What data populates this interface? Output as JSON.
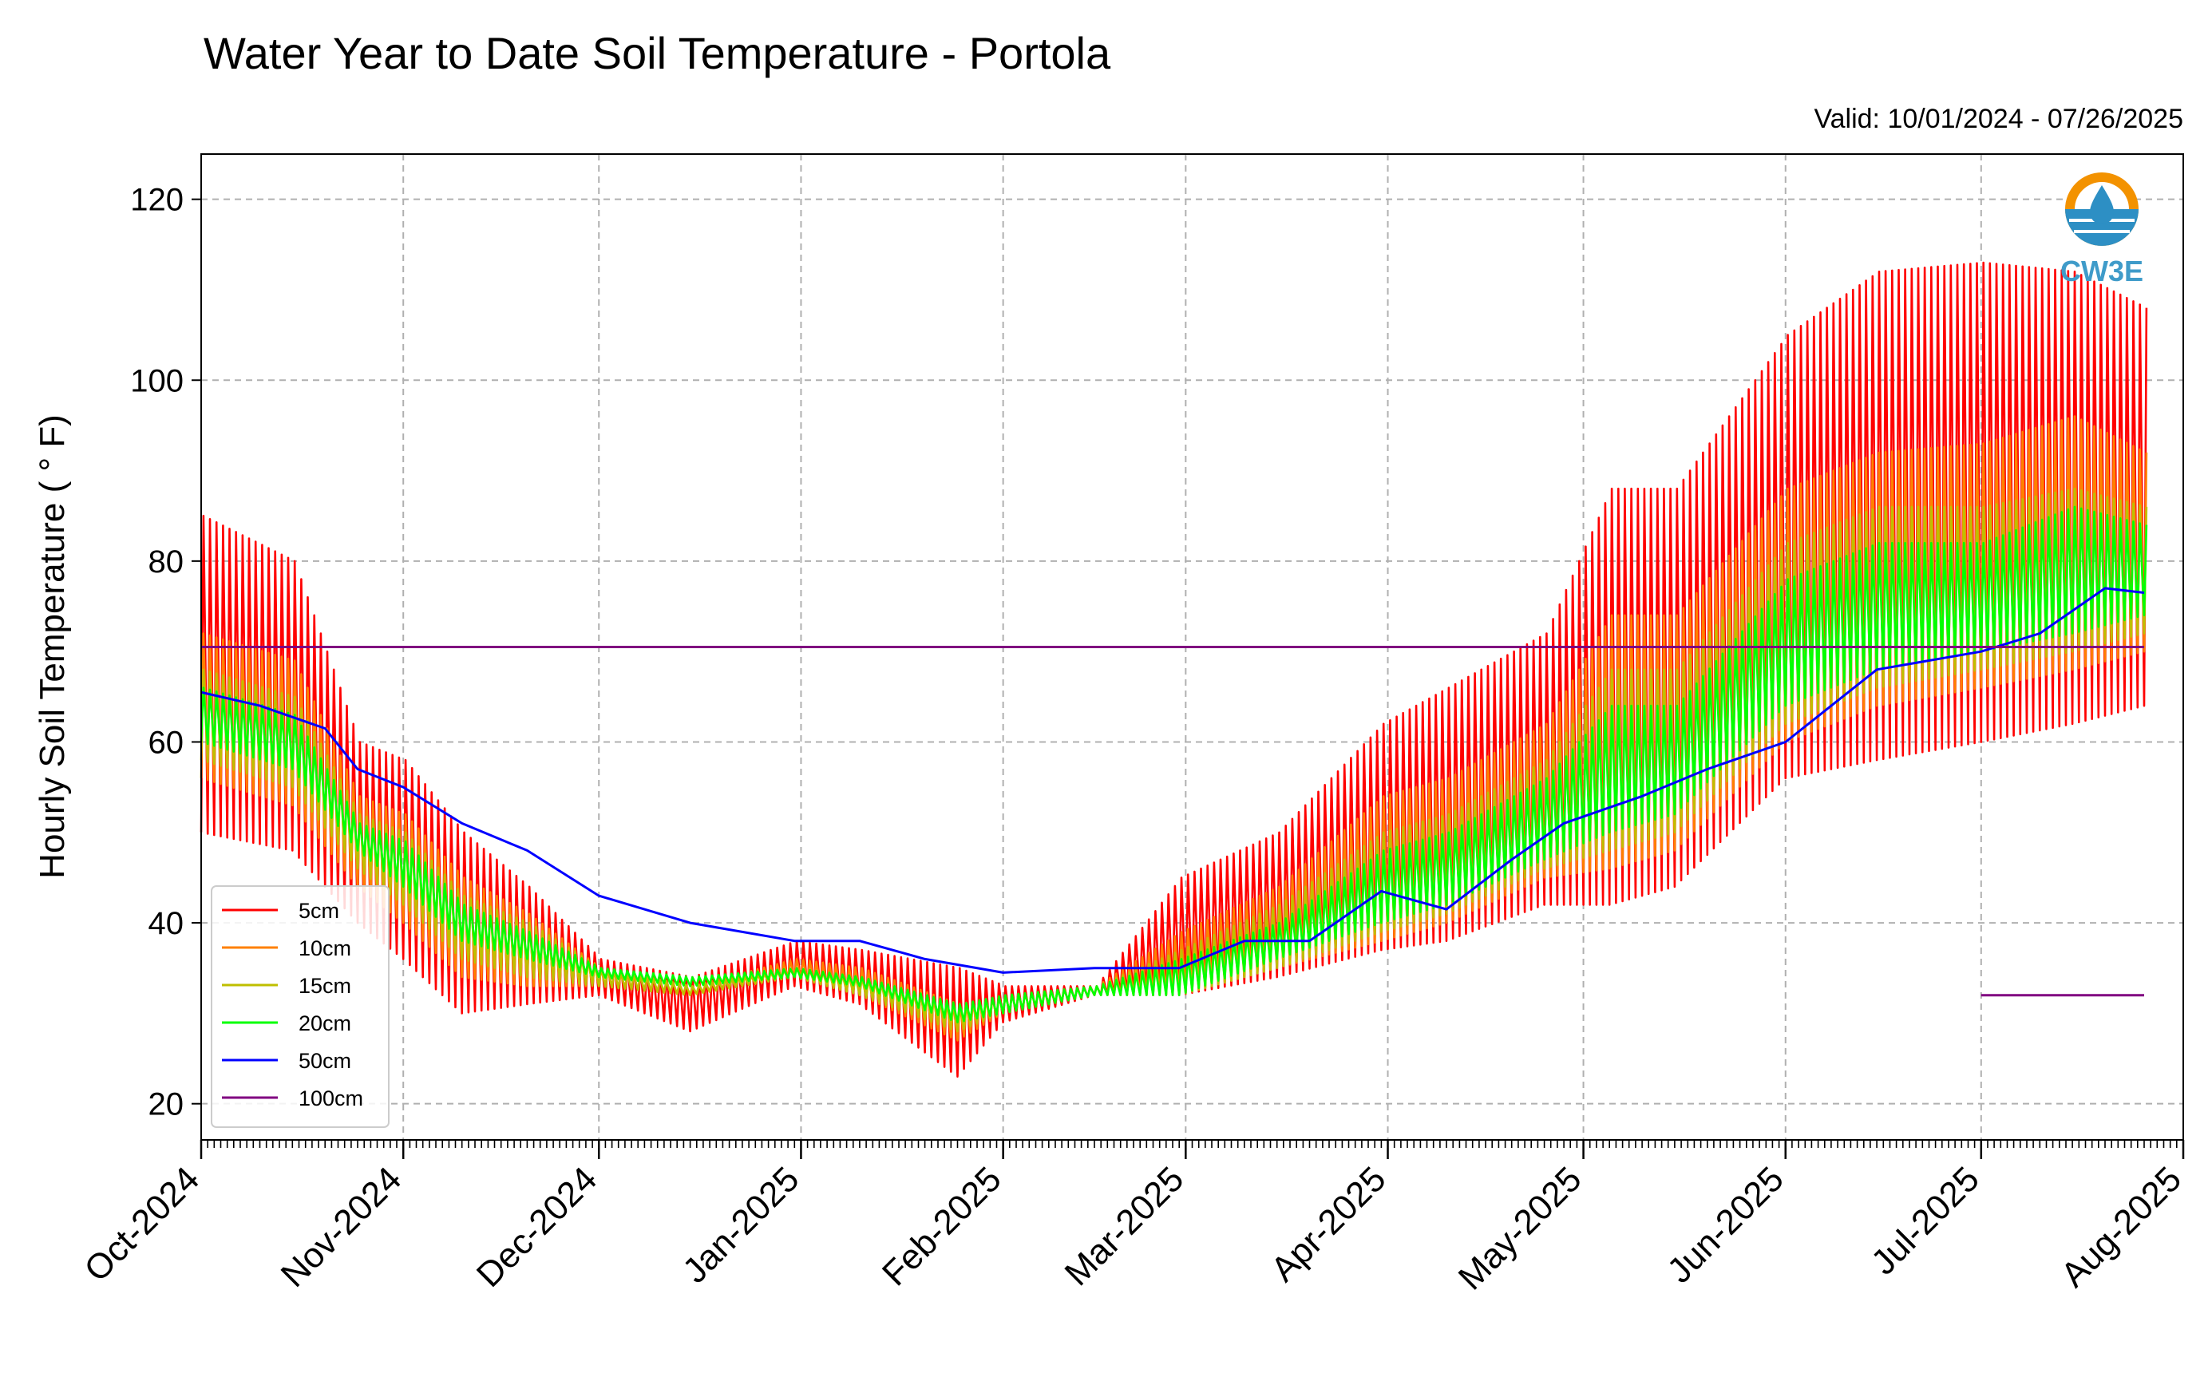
{
  "chart_data": {
    "type": "line",
    "title": "Water Year to Date Soil Temperature - Portola",
    "subtitle": "Valid: 10/01/2024 - 07/26/2025",
    "ylabel": "Hourly Soil Temperature ( ° F)",
    "xlabel": "",
    "xlim": [
      "2024-10-01",
      "2025-08-01"
    ],
    "ylim": [
      16,
      125
    ],
    "yticks": [
      20,
      40,
      60,
      80,
      100,
      120
    ],
    "xtick_labels": [
      "Oct-2024",
      "Nov-2024",
      "Dec-2024",
      "Jan-2025",
      "Feb-2025",
      "Mar-2025",
      "Apr-2025",
      "May-2025",
      "Jun-2025",
      "Jul-2025",
      "Aug-2025"
    ],
    "grid": true,
    "legend": "lower-left",
    "logo": "CW3E",
    "series": [
      {
        "name": "5cm",
        "color": "#ff0000",
        "kind": "diurnal",
        "x": [
          "2024-10-01",
          "2024-10-15",
          "2024-10-25",
          "2024-11-01",
          "2024-11-10",
          "2024-11-20",
          "2024-12-01",
          "2024-12-15",
          "2024-12-31",
          "2025-01-10",
          "2025-01-25",
          "2025-02-01",
          "2025-02-15",
          "2025-02-28",
          "2025-03-15",
          "2025-03-31",
          "2025-04-10",
          "2025-04-25",
          "2025-05-05",
          "2025-05-15",
          "2025-06-01",
          "2025-06-15",
          "2025-07-01",
          "2025-07-15",
          "2025-07-26"
        ],
        "low": [
          50,
          48,
          40,
          36,
          30,
          31,
          32,
          28,
          33,
          31,
          23,
          29,
          32,
          32,
          34,
          37,
          38,
          42,
          42,
          44,
          56,
          58,
          60,
          62,
          64
        ],
        "high": [
          85,
          80,
          60,
          58,
          50,
          44,
          36,
          34,
          38,
          37,
          35,
          33,
          33,
          45,
          50,
          62,
          66,
          72,
          88,
          88,
          105,
          112,
          113,
          112,
          108
        ]
      },
      {
        "name": "10cm",
        "color": "#ff8000",
        "kind": "diurnal",
        "x": [
          "2024-10-01",
          "2024-10-15",
          "2024-10-25",
          "2024-11-01",
          "2024-11-10",
          "2024-11-20",
          "2024-12-01",
          "2024-12-15",
          "2024-12-31",
          "2025-01-10",
          "2025-01-25",
          "2025-02-01",
          "2025-02-15",
          "2025-02-28",
          "2025-03-15",
          "2025-03-31",
          "2025-04-10",
          "2025-04-25",
          "2025-05-05",
          "2025-05-15",
          "2025-06-01",
          "2025-06-15",
          "2025-07-01",
          "2025-07-15",
          "2025-07-26"
        ],
        "low": [
          56,
          53,
          44,
          40,
          34,
          33,
          33,
          32,
          34,
          32,
          27,
          30,
          32,
          32,
          35,
          38,
          40,
          45,
          46,
          48,
          60,
          64,
          66,
          68,
          70
        ],
        "high": [
          72,
          69,
          54,
          52,
          45,
          41,
          35,
          33,
          36,
          35,
          31,
          32,
          33,
          39,
          44,
          54,
          56,
          62,
          74,
          74,
          88,
          92,
          93,
          96,
          92
        ]
      },
      {
        "name": "15cm",
        "color": "#bfbf00",
        "kind": "diurnal",
        "x": [
          "2024-10-01",
          "2024-10-15",
          "2024-10-25",
          "2024-11-01",
          "2024-11-10",
          "2024-11-20",
          "2024-12-01",
          "2024-12-15",
          "2024-12-31",
          "2025-01-10",
          "2025-01-25",
          "2025-02-01",
          "2025-02-15",
          "2025-02-28",
          "2025-03-15",
          "2025-03-31",
          "2025-04-10",
          "2025-04-25",
          "2025-05-05",
          "2025-05-15",
          "2025-06-01",
          "2025-06-15",
          "2025-07-01",
          "2025-07-15",
          "2025-07-26"
        ],
        "low": [
          58,
          55,
          46,
          42,
          36,
          34,
          33,
          32,
          34,
          32,
          28,
          30,
          32,
          32,
          35,
          39,
          41,
          46,
          48,
          50,
          62,
          66,
          68,
          70,
          72
        ],
        "high": [
          68,
          65,
          52,
          50,
          43,
          40,
          35,
          33,
          35,
          34,
          31,
          32,
          33,
          37,
          42,
          50,
          52,
          58,
          68,
          68,
          82,
          86,
          86,
          88,
          86
        ]
      },
      {
        "name": "20cm",
        "color": "#00ff00",
        "kind": "diurnal",
        "x": [
          "2024-10-01",
          "2024-10-15",
          "2024-10-25",
          "2024-11-01",
          "2024-11-10",
          "2024-11-20",
          "2024-12-01",
          "2024-12-15",
          "2024-12-31",
          "2025-01-10",
          "2025-01-25",
          "2025-02-01",
          "2025-02-15",
          "2025-02-28",
          "2025-03-15",
          "2025-03-31",
          "2025-04-10",
          "2025-04-25",
          "2025-05-05",
          "2025-05-15",
          "2025-06-01",
          "2025-06-15",
          "2025-07-01",
          "2025-07-15",
          "2025-07-26"
        ],
        "low": [
          60,
          57,
          48,
          44,
          38,
          36,
          34,
          33,
          34,
          33,
          29,
          30,
          32,
          32,
          36,
          40,
          42,
          47,
          50,
          52,
          64,
          68,
          70,
          72,
          74
        ],
        "high": [
          66,
          63,
          51,
          49,
          42,
          39,
          35,
          34,
          35,
          34,
          31,
          32,
          33,
          36,
          40,
          48,
          50,
          56,
          64,
          64,
          78,
          82,
          82,
          86,
          84
        ]
      },
      {
        "name": "50cm",
        "color": "#0000ff",
        "kind": "line",
        "x": [
          "2024-10-01",
          "2024-10-10",
          "2024-10-20",
          "2024-10-25",
          "2024-11-01",
          "2024-11-10",
          "2024-11-20",
          "2024-12-01",
          "2024-12-15",
          "2024-12-31",
          "2025-01-10",
          "2025-01-20",
          "2025-02-01",
          "2025-02-15",
          "2025-02-28",
          "2025-03-10",
          "2025-03-20",
          "2025-03-31",
          "2025-04-10",
          "2025-04-20",
          "2025-04-28",
          "2025-05-10",
          "2025-05-20",
          "2025-06-01",
          "2025-06-15",
          "2025-07-01",
          "2025-07-10",
          "2025-07-20",
          "2025-07-26"
        ],
        "y": [
          65.5,
          64,
          61.5,
          57,
          55,
          51,
          48,
          43,
          40,
          38,
          38,
          36,
          34.5,
          35,
          35,
          38,
          38,
          43.5,
          41.5,
          47,
          51,
          54,
          57,
          60,
          68,
          70,
          72,
          77,
          76.5
        ]
      },
      {
        "name": "100cm",
        "color": "#800080",
        "kind": "line",
        "x": [
          "2024-10-01",
          "2025-07-26"
        ],
        "y": [
          70.5,
          70.5
        ]
      }
    ],
    "annotations": [
      {
        "type": "segment",
        "color": "#800080",
        "x": [
          "2025-07-01",
          "2025-07-26"
        ],
        "y": [
          32,
          32
        ]
      }
    ]
  }
}
